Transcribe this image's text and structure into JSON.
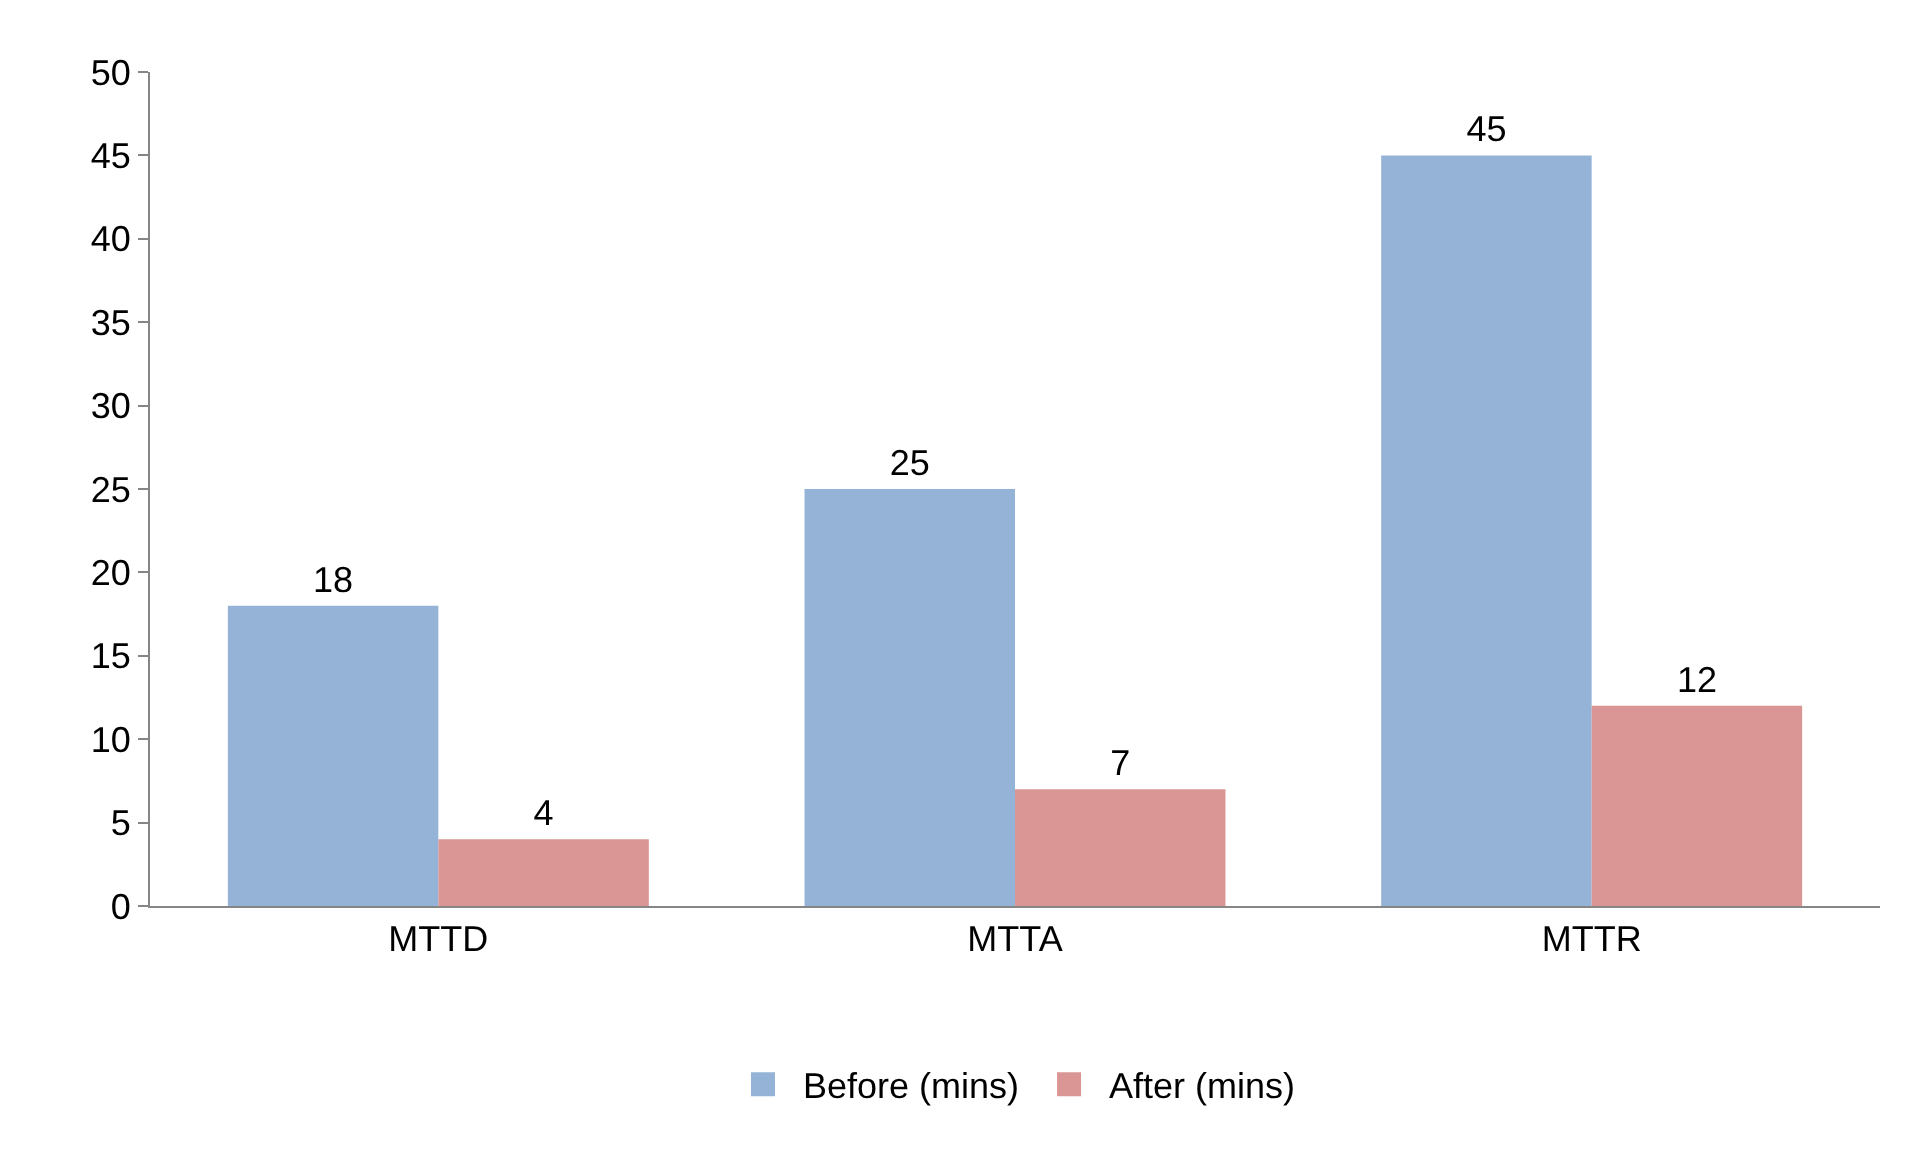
{
  "chart_data": {
    "type": "bar",
    "categories": [
      "MTTD",
      "MTTA",
      "MTTR"
    ],
    "series": [
      {
        "name": "Before (mins)",
        "color": "#95b3d7",
        "values": [
          18,
          25,
          45
        ]
      },
      {
        "name": "After (mins)",
        "color": "#d99694",
        "values": [
          4,
          7,
          12
        ]
      }
    ],
    "ylim": [
      0,
      50
    ],
    "yticks": [
      0,
      5,
      10,
      15,
      20,
      25,
      30,
      35,
      40,
      45,
      50
    ],
    "grid": false,
    "legend": "bottom",
    "data_labels": true
  }
}
